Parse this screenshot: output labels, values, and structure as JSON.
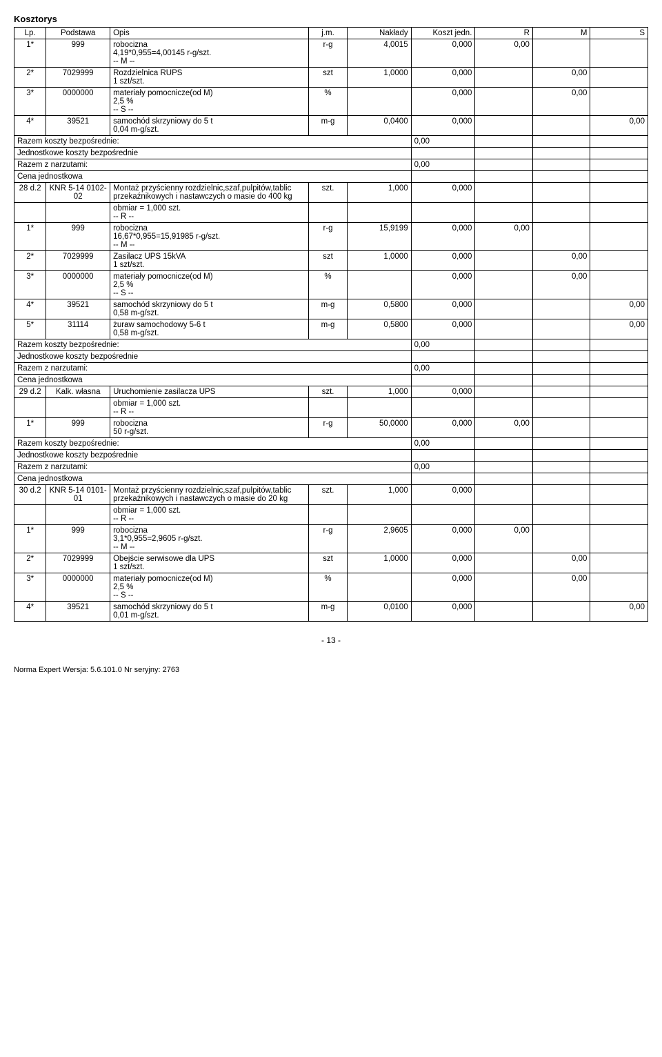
{
  "title": "Kosztorys",
  "headers": {
    "lp": "Lp.",
    "podstawa": "Podstawa",
    "opis": "Opis",
    "jm": "j.m.",
    "naklady": "Nakłady",
    "koszt": "Koszt jedn.",
    "r": "R",
    "m": "M",
    "s": "S"
  },
  "labels": {
    "razem_bezp": "Razem koszty bezpośrednie:",
    "jedn_bezp": "Jednostkowe koszty bezpośrednie",
    "razem_narz": "Razem z narzutami:",
    "cena_jedn": "Cena jednostkowa"
  },
  "rows": [
    {
      "lp": "1*",
      "pod": "999",
      "opis": "robocizna\n4,19*0,955=4,00145 r-g/szt.\n-- M --",
      "jm": "r-g",
      "nak": "4,0015",
      "koszt": "0,000",
      "r": "0,00",
      "m": "",
      "s": ""
    },
    {
      "lp": "2*",
      "pod": "7029999",
      "opis": "Rozdzielnica RUPS\n1 szt/szt.",
      "jm": "szt",
      "nak": "1,0000",
      "koszt": "0,000",
      "r": "",
      "m": "0,00",
      "s": ""
    },
    {
      "lp": "3*",
      "pod": "0000000",
      "opis": "materiały pomocnicze(od M)\n2,5 %\n-- S --",
      "jm": "%",
      "nak": "",
      "koszt": "0,000",
      "r": "",
      "m": "0,00",
      "s": ""
    },
    {
      "lp": "4*",
      "pod": "39521",
      "opis": "samochód skrzyniowy do 5 t\n0,04 m-g/szt.",
      "jm": "m-g",
      "nak": "0,0400",
      "koszt": "0,000",
      "r": "",
      "m": "",
      "s": "0,00"
    },
    {
      "summary": "razem_bezp",
      "val": "0,00"
    },
    {
      "summary": "jedn_bezp"
    },
    {
      "summary": "razem_narz",
      "val": "0,00"
    },
    {
      "summary": "cena_jedn"
    },
    {
      "lp": "28 d.2",
      "pod": "KNR 5-14 0102-02",
      "opis": "Montaż przyścienny rozdzielnic,szaf,pulpitów,tablic przekaźnikowych i nastawczych o masie do 400 kg",
      "jm": "szt.",
      "nak": "1,000",
      "koszt": "0,000",
      "r": "",
      "m": "",
      "s": ""
    },
    {
      "lp": "",
      "pod": "",
      "opis": "obmiar = 1,000 szt.\n-- R --",
      "jm": "",
      "nak": "",
      "koszt": "",
      "r": "",
      "m": "",
      "s": ""
    },
    {
      "lp": "1*",
      "pod": "999",
      "opis": "robocizna\n16,67*0,955=15,91985 r-g/szt.\n-- M --",
      "jm": "r-g",
      "nak": "15,9199",
      "koszt": "0,000",
      "r": "0,00",
      "m": "",
      "s": ""
    },
    {
      "lp": "2*",
      "pod": "7029999",
      "opis": "Zasilacz UPS 15kVA\n1 szt/szt.",
      "jm": "szt",
      "nak": "1,0000",
      "koszt": "0,000",
      "r": "",
      "m": "0,00",
      "s": ""
    },
    {
      "lp": "3*",
      "pod": "0000000",
      "opis": "materiały pomocnicze(od M)\n2,5 %\n-- S --",
      "jm": "%",
      "nak": "",
      "koszt": "0,000",
      "r": "",
      "m": "0,00",
      "s": ""
    },
    {
      "lp": "4*",
      "pod": "39521",
      "opis": "samochód skrzyniowy do 5 t\n0,58 m-g/szt.",
      "jm": "m-g",
      "nak": "0,5800",
      "koszt": "0,000",
      "r": "",
      "m": "",
      "s": "0,00"
    },
    {
      "lp": "5*",
      "pod": "31114",
      "opis": "żuraw samochodowy 5-6 t\n0,58 m-g/szt.",
      "jm": "m-g",
      "nak": "0,5800",
      "koszt": "0,000",
      "r": "",
      "m": "",
      "s": "0,00"
    },
    {
      "summary": "razem_bezp",
      "val": "0,00"
    },
    {
      "summary": "jedn_bezp"
    },
    {
      "summary": "razem_narz",
      "val": "0,00"
    },
    {
      "summary": "cena_jedn"
    },
    {
      "lp": "29 d.2",
      "pod": "Kalk. własna",
      "opis": "Uruchomienie zasilacza UPS",
      "jm": "szt.",
      "nak": "1,000",
      "koszt": "0,000",
      "r": "",
      "m": "",
      "s": ""
    },
    {
      "lp": "",
      "pod": "",
      "opis": "obmiar = 1,000 szt.\n-- R --",
      "jm": "",
      "nak": "",
      "koszt": "",
      "r": "",
      "m": "",
      "s": ""
    },
    {
      "lp": "1*",
      "pod": "999",
      "opis": "robocizna\n50 r-g/szt.",
      "jm": "r-g",
      "nak": "50,0000",
      "koszt": "0,000",
      "r": "0,00",
      "m": "",
      "s": ""
    },
    {
      "summary": "razem_bezp",
      "val": "0,00"
    },
    {
      "summary": "jedn_bezp"
    },
    {
      "summary": "razem_narz",
      "val": "0,00"
    },
    {
      "summary": "cena_jedn"
    },
    {
      "lp": "30 d.2",
      "pod": "KNR 5-14 0101-01",
      "opis": "Montaż przyścienny rozdzielnic,szaf,pulpitów,tablic przekaźnikowych i nastawczych o masie do 20 kg",
      "jm": "szt.",
      "nak": "1,000",
      "koszt": "0,000",
      "r": "",
      "m": "",
      "s": ""
    },
    {
      "lp": "",
      "pod": "",
      "opis": "obmiar = 1,000 szt.\n-- R --",
      "jm": "",
      "nak": "",
      "koszt": "",
      "r": "",
      "m": "",
      "s": ""
    },
    {
      "lp": "1*",
      "pod": "999",
      "opis": "robocizna\n3,1*0,955=2,9605 r-g/szt.\n-- M --",
      "jm": "r-g",
      "nak": "2,9605",
      "koszt": "0,000",
      "r": "0,00",
      "m": "",
      "s": ""
    },
    {
      "lp": "2*",
      "pod": "7029999",
      "opis": "Obejście serwisowe dla UPS\n1 szt/szt.",
      "jm": "szt",
      "nak": "1,0000",
      "koszt": "0,000",
      "r": "",
      "m": "0,00",
      "s": ""
    },
    {
      "lp": "3*",
      "pod": "0000000",
      "opis": "materiały pomocnicze(od M)\n2,5 %\n-- S --",
      "jm": "%",
      "nak": "",
      "koszt": "0,000",
      "r": "",
      "m": "0,00",
      "s": ""
    },
    {
      "lp": "4*",
      "pod": "39521",
      "opis": "samochód skrzyniowy do 5 t\n0,01 m-g/szt.",
      "jm": "m-g",
      "nak": "0,0100",
      "koszt": "0,000",
      "r": "",
      "m": "",
      "s": "0,00"
    }
  ],
  "page_num": "- 13 -",
  "footer": "Norma Expert  Wersja: 5.6.101.0  Nr seryjny: 2763"
}
